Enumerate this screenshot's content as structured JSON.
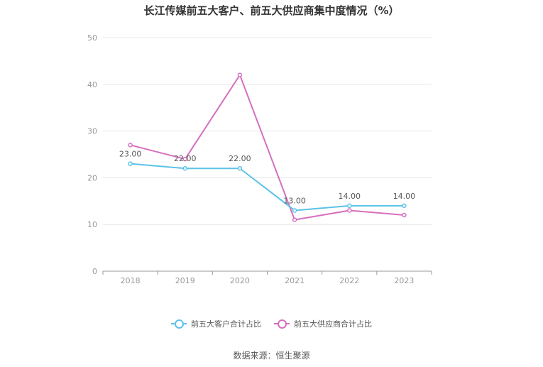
{
  "chart_data": {
    "type": "line",
    "title": "长江传媒前五大客户、前五大供应商集中度情况（%）",
    "categories": [
      "2018",
      "2019",
      "2020",
      "2021",
      "2022",
      "2023"
    ],
    "ylim": [
      0,
      50
    ],
    "yticks": [
      "0",
      "10",
      "20",
      "30",
      "40",
      "50"
    ],
    "grid": true,
    "legend_position": "bottom",
    "series": [
      {
        "name": "前五大客户合计占比",
        "color": "#5bc2e7",
        "values": [
          23,
          22,
          22,
          13,
          14,
          14
        ],
        "labels": [
          "23.00",
          "22.00",
          "22.00",
          "13.00",
          "14.00",
          "14.00"
        ]
      },
      {
        "name": "前五大供应商合计占比",
        "color": "#d66fbf",
        "values": [
          27,
          24,
          42,
          11,
          13,
          12
        ]
      }
    ]
  },
  "footer": {
    "source": "数据来源：恒生聚源"
  }
}
